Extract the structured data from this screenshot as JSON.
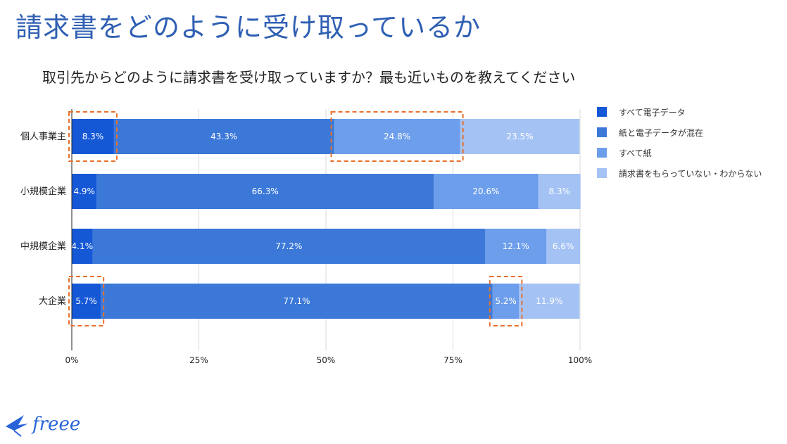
{
  "slide": {
    "title": "請求書をどのように受け取っているか",
    "subtitle": "取引先からどのように請求書を受け取っていますか？最も近いものを教えてください"
  },
  "logo": {
    "text": "freee",
    "icon": "bird-icon",
    "color": "#2864d8"
  },
  "chart_data": {
    "type": "bar",
    "orientation": "horizontal",
    "stacked": true,
    "normalized": true,
    "categories": [
      "個人事業主",
      "小規模企業",
      "中規模企業",
      "大企業"
    ],
    "series": [
      {
        "name": "すべて電子データ",
        "color": "#1558d6",
        "values": [
          8.3,
          4.9,
          4.1,
          5.7
        ]
      },
      {
        "name": "紙と電子データが混在",
        "color": "#3b78d8",
        "values": [
          43.3,
          66.3,
          77.2,
          77.1
        ]
      },
      {
        "name": "すべて紙",
        "color": "#6d9eeb",
        "values": [
          24.8,
          20.6,
          12.1,
          5.2
        ]
      },
      {
        "name": "請求書をもらっていない・わからない",
        "color": "#a4c2f4",
        "values": [
          23.5,
          8.3,
          6.6,
          11.9
        ]
      }
    ],
    "value_labels": [
      [
        "8.3%",
        "43.3%",
        "24.8%",
        "23.5%"
      ],
      [
        "4.9%",
        "66.3%",
        "20.6%",
        "8.3%"
      ],
      [
        "4.1%",
        "77.2%",
        "12.1%",
        "6.6%"
      ],
      [
        "5.7%",
        "77.1%",
        "5.2%",
        "11.9%"
      ]
    ],
    "x_ticks": [
      "0%",
      "25%",
      "50%",
      "75%",
      "100%"
    ],
    "xlim": [
      0,
      100
    ],
    "grid": true,
    "legend_position": "right",
    "highlights": [
      {
        "category": "個人事業主",
        "series": [
          "すべて電子データ"
        ]
      },
      {
        "category": "個人事業主",
        "series": [
          "すべて紙"
        ]
      },
      {
        "category": "大企業",
        "series": [
          "すべて電子データ"
        ]
      },
      {
        "category": "大企業",
        "series": [
          "すべて紙"
        ]
      }
    ],
    "highlight_color": "#e8712c"
  }
}
